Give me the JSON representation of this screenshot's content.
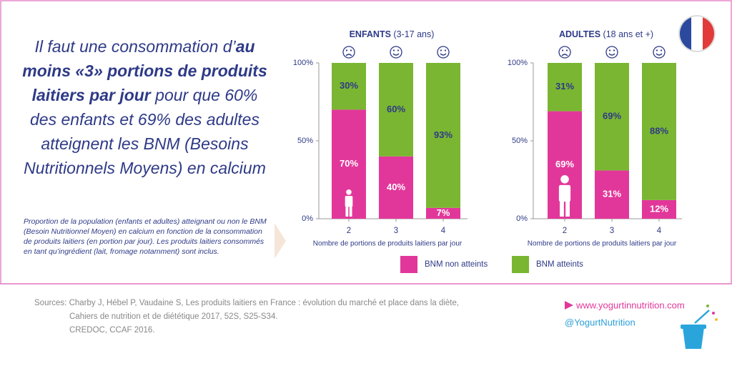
{
  "headline": [
    "Il faut une consommation d’",
    "au moins «3» portions de produits laitiers par jour",
    " pour que 60% des enfants et 69% des adultes atteignent les BNM (Besoins Nutritionnels Moyens) en calcium"
  ],
  "description": "Proportion de la population (enfants et adultes) atteignant ou non le BNM (Besoin Nutritionnel Moyen) en calcium en fonction de la consommation de produits laitiers (en portion par jour). Les produits laitiers consommés en tant qu’ingrédient (lait, fromage notamment) sont inclus.",
  "sources": [
    "Sources: Charby J, Hébel P, Vaudaine S, Les produits laitiers en France : évolution du marché et place dans la diète,",
    "Cahiers de nutrition et de diététique 2017, 52S, S25-S34.",
    "CREDOC, CCAF 2016."
  ],
  "links": [
    "www.yogurtinnutrition.com",
    "@YogurtNutrition"
  ],
  "chart_data": [
    {
      "type": "bar",
      "stacked": true,
      "title": "ENFANTS",
      "subtitle": "(3-17 ans)",
      "categories": [
        "2",
        "3",
        "4"
      ],
      "series": [
        {
          "name": "BNM non atteints",
          "color": "#e2379a",
          "values": [
            70,
            40,
            7
          ],
          "value_labels": [
            "70%",
            "40%",
            "7%"
          ]
        },
        {
          "name": "BNM atteints",
          "color": "#7ab631",
          "values": [
            30,
            60,
            93
          ],
          "value_labels": [
            "30%",
            "60%",
            "93%"
          ]
        }
      ],
      "xlabel": "Nombre de portions de produits laitiers par jour",
      "ylim": [
        0,
        100
      ],
      "yticks": [
        {
          "value": 0,
          "label": "0%"
        },
        {
          "value": 50,
          "label": "50%"
        },
        {
          "value": 100,
          "label": "100%"
        }
      ]
    },
    {
      "type": "bar",
      "stacked": true,
      "title": "ADULTES",
      "subtitle": "(18 ans et +)",
      "categories": [
        "2",
        "3",
        "4"
      ],
      "series": [
        {
          "color": "#e2379a",
          "values": [
            69,
            31,
            12
          ],
          "value_labels": [
            "69%",
            "31%",
            "12%"
          ]
        },
        {
          "color": "#7ab631",
          "values": [
            31,
            69,
            88
          ],
          "value_labels": [
            "31%",
            "69%",
            "88%"
          ]
        }
      ],
      "xlabel": "Nombre de portions de produits laitiers par jour",
      "ylim": [
        0,
        100
      ],
      "yticks": [
        {
          "value": 0,
          "label": "0%"
        },
        {
          "value": 50,
          "label": "50%"
        },
        {
          "value": 100,
          "label": "100%"
        }
      ]
    }
  ]
}
